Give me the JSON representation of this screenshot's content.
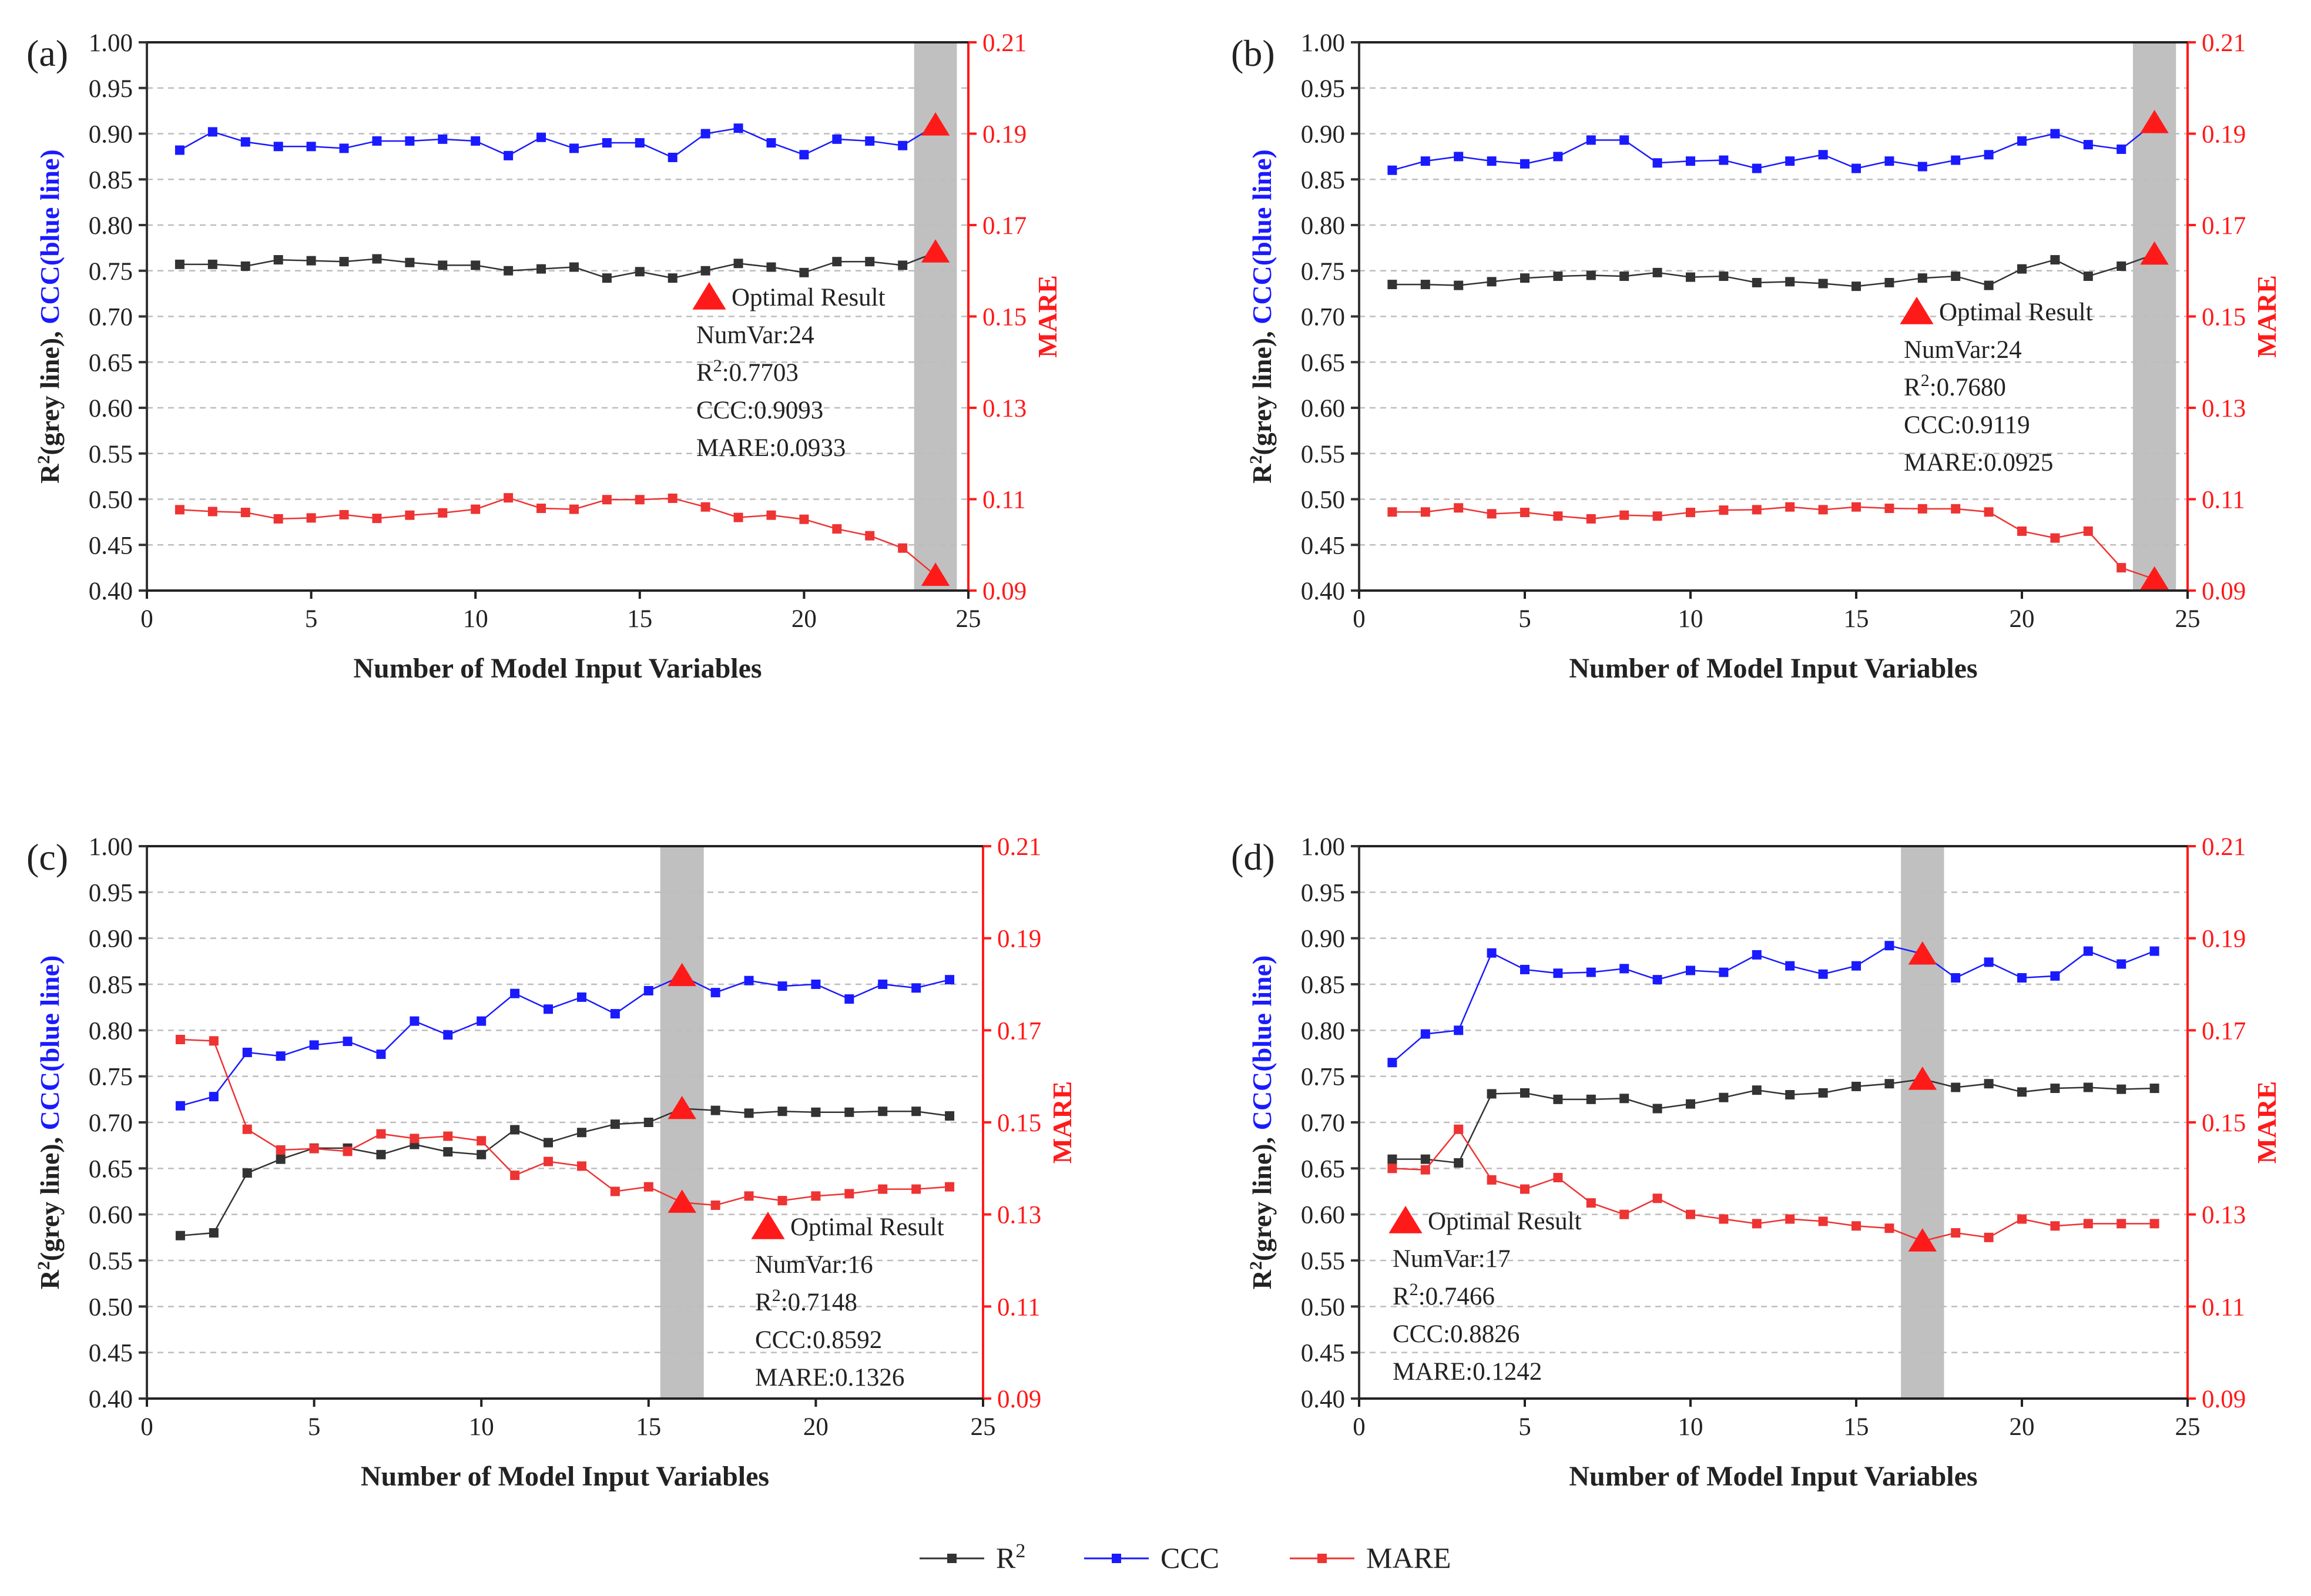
{
  "chart_data": [
    {
      "panel_label": "(a)",
      "type": "line",
      "xlabel": "Number of Model Input Variables",
      "ylabel_left_parts": [
        "R",
        "2",
        "(grey line), ",
        "CCC(blue line)"
      ],
      "ylabel_right": "MARE",
      "xlim": [
        0,
        25
      ],
      "ylim_left": [
        0.4,
        1.0
      ],
      "ylim_right": [
        0.09,
        0.21
      ],
      "x_ticks": [
        "0",
        "5",
        "10",
        "15",
        "20",
        "25"
      ],
      "y_left_ticks": [
        "0.40",
        "0.45",
        "0.50",
        "0.55",
        "0.60",
        "0.65",
        "0.70",
        "0.75",
        "0.80",
        "0.85",
        "0.90",
        "0.95",
        "1.00"
      ],
      "y_right_ticks": [
        "0.09",
        "0.11",
        "0.13",
        "0.15",
        "0.17",
        "0.19",
        "0.21"
      ],
      "x": [
        1,
        2,
        3,
        4,
        5,
        6,
        7,
        8,
        9,
        10,
        11,
        12,
        13,
        14,
        15,
        16,
        17,
        18,
        19,
        20,
        21,
        22,
        23,
        24
      ],
      "series": [
        {
          "name": "R2",
          "axis": "left",
          "color": "#333333",
          "values": [
            0.757,
            0.757,
            0.755,
            0.762,
            0.761,
            0.76,
            0.763,
            0.759,
            0.756,
            0.756,
            0.75,
            0.752,
            0.754,
            0.742,
            0.749,
            0.742,
            0.75,
            0.758,
            0.754,
            0.748,
            0.76,
            0.76,
            0.756,
            0.77
          ]
        },
        {
          "name": "CCC",
          "axis": "left",
          "color": "#1a1aff",
          "values": [
            0.882,
            0.902,
            0.891,
            0.886,
            0.886,
            0.884,
            0.892,
            0.892,
            0.894,
            0.892,
            0.876,
            0.896,
            0.884,
            0.89,
            0.89,
            0.874,
            0.9,
            0.906,
            0.89,
            0.877,
            0.894,
            0.892,
            0.887,
            0.909
          ]
        },
        {
          "name": "MARE",
          "axis": "right",
          "color": "#ee3333",
          "values": [
            0.1077,
            0.1073,
            0.1071,
            0.1057,
            0.1059,
            0.1066,
            0.1058,
            0.1065,
            0.107,
            0.1078,
            0.1103,
            0.108,
            0.1078,
            0.1099,
            0.1099,
            0.1102,
            0.1083,
            0.106,
            0.1065,
            0.1056,
            0.1035,
            0.102,
            0.0993,
            0.0933
          ]
        }
      ],
      "optimal": {
        "x": 24,
        "r2": 0.7703,
        "ccc": 0.9093,
        "mare": 0.0933
      },
      "highlight_x": 24,
      "annotation": {
        "title": "Optimal Result",
        "numvar": "NumVar:24",
        "r2_prefix": "R",
        "r2_sup": "2",
        "r2_value": ":0.7703",
        "ccc": "CCC:0.9093",
        "mare": "MARE:0.0933"
      }
    },
    {
      "panel_label": "(b)",
      "type": "line",
      "xlabel": "Number of Model Input Variables",
      "ylabel_left_parts": [
        "R",
        "2",
        "(grey line), ",
        "CCC(blue line)"
      ],
      "ylabel_right": "MARE",
      "xlim": [
        0,
        25
      ],
      "ylim_left": [
        0.4,
        1.0
      ],
      "ylim_right": [
        0.09,
        0.21
      ],
      "x_ticks": [
        "0",
        "5",
        "10",
        "15",
        "20",
        "25"
      ],
      "y_left_ticks": [
        "0.40",
        "0.45",
        "0.50",
        "0.55",
        "0.60",
        "0.65",
        "0.70",
        "0.75",
        "0.80",
        "0.85",
        "0.90",
        "0.95",
        "1.00"
      ],
      "y_right_ticks": [
        "0.09",
        "0.11",
        "0.13",
        "0.15",
        "0.17",
        "0.19",
        "0.21"
      ],
      "x": [
        1,
        2,
        3,
        4,
        5,
        6,
        7,
        8,
        9,
        10,
        11,
        12,
        13,
        14,
        15,
        16,
        17,
        18,
        19,
        20,
        21,
        22,
        23,
        24
      ],
      "series": [
        {
          "name": "R2",
          "axis": "left",
          "color": "#333333",
          "values": [
            0.735,
            0.735,
            0.734,
            0.738,
            0.742,
            0.744,
            0.745,
            0.744,
            0.748,
            0.743,
            0.744,
            0.737,
            0.738,
            0.736,
            0.733,
            0.737,
            0.742,
            0.744,
            0.734,
            0.752,
            0.762,
            0.744,
            0.755,
            0.768
          ]
        },
        {
          "name": "CCC",
          "axis": "left",
          "color": "#1a1aff",
          "values": [
            0.86,
            0.87,
            0.875,
            0.87,
            0.867,
            0.875,
            0.893,
            0.893,
            0.868,
            0.87,
            0.871,
            0.862,
            0.87,
            0.877,
            0.862,
            0.87,
            0.864,
            0.871,
            0.877,
            0.892,
            0.9,
            0.888,
            0.883,
            0.912
          ]
        },
        {
          "name": "MARE",
          "axis": "right",
          "color": "#ee3333",
          "values": [
            0.1072,
            0.1072,
            0.1081,
            0.1068,
            0.1071,
            0.1063,
            0.1057,
            0.1065,
            0.1063,
            0.1071,
            0.1076,
            0.1077,
            0.1083,
            0.1077,
            0.1083,
            0.108,
            0.1079,
            0.1079,
            0.1072,
            0.103,
            0.1015,
            0.103,
            0.095,
            0.0925
          ]
        }
      ],
      "optimal": {
        "x": 24,
        "r2": 0.768,
        "ccc": 0.9119,
        "mare": 0.0925
      },
      "highlight_x": 24,
      "annotation": {
        "title": "Optimal Result",
        "numvar": "NumVar:24",
        "r2_prefix": "R",
        "r2_sup": "2",
        "r2_value": ":0.7680",
        "ccc": "CCC:0.9119",
        "mare": "MARE:0.0925"
      }
    },
    {
      "panel_label": "(c)",
      "type": "line",
      "xlabel": "Number of Model Input Variables",
      "ylabel_left_parts": [
        "R",
        "2",
        "(grey line), ",
        "CCC(blue line)"
      ],
      "ylabel_right": "MARE",
      "xlim": [
        0,
        25
      ],
      "ylim_left": [
        0.4,
        1.0
      ],
      "ylim_right": [
        0.09,
        0.21
      ],
      "x_ticks": [
        "0",
        "5",
        "10",
        "15",
        "20",
        "25"
      ],
      "y_left_ticks": [
        "0.40",
        "0.45",
        "0.50",
        "0.55",
        "0.60",
        "0.65",
        "0.70",
        "0.75",
        "0.80",
        "0.85",
        "0.90",
        "0.95",
        "1.00"
      ],
      "y_right_ticks": [
        "0.09",
        "0.11",
        "0.13",
        "0.15",
        "0.17",
        "0.19",
        "0.21"
      ],
      "x": [
        1,
        2,
        3,
        4,
        5,
        6,
        7,
        8,
        9,
        10,
        11,
        12,
        13,
        14,
        15,
        16,
        17,
        18,
        19,
        20,
        21,
        22,
        23,
        24
      ],
      "series": [
        {
          "name": "R2",
          "axis": "left",
          "color": "#333333",
          "values": [
            0.577,
            0.58,
            0.645,
            0.66,
            0.672,
            0.672,
            0.665,
            0.676,
            0.668,
            0.665,
            0.692,
            0.678,
            0.689,
            0.698,
            0.7,
            0.715,
            0.713,
            0.71,
            0.712,
            0.711,
            0.711,
            0.712,
            0.712,
            0.707
          ]
        },
        {
          "name": "CCC",
          "axis": "left",
          "color": "#1a1aff",
          "values": [
            0.718,
            0.728,
            0.776,
            0.772,
            0.784,
            0.788,
            0.774,
            0.81,
            0.795,
            0.81,
            0.84,
            0.823,
            0.836,
            0.818,
            0.843,
            0.859,
            0.841,
            0.854,
            0.848,
            0.85,
            0.834,
            0.85,
            0.846,
            0.855
          ]
        },
        {
          "name": "MARE",
          "axis": "right",
          "color": "#ee3333",
          "values": [
            0.168,
            0.1677,
            0.1485,
            0.144,
            0.1443,
            0.1437,
            0.1475,
            0.1465,
            0.147,
            0.146,
            0.1385,
            0.1415,
            0.1405,
            0.135,
            0.136,
            0.1326,
            0.132,
            0.134,
            0.133,
            0.134,
            0.1345,
            0.1355,
            0.1355,
            0.136
          ]
        }
      ],
      "optimal": {
        "x": 16,
        "r2": 0.7148,
        "ccc": 0.8592,
        "mare": 0.1326
      },
      "highlight_x": 16,
      "annotation": {
        "title": "Optimal Result",
        "numvar": "NumVar:16",
        "r2_prefix": "R",
        "r2_sup": "2",
        "r2_value": ":0.7148",
        "ccc": "CCC:0.8592",
        "mare": "MARE:0.1326"
      }
    },
    {
      "panel_label": "(d)",
      "type": "line",
      "xlabel": "Number of Model Input Variables",
      "ylabel_left_parts": [
        "R",
        "2",
        "(grey line), ",
        "CCC(blue line)"
      ],
      "ylabel_right": "MARE",
      "xlim": [
        0,
        25
      ],
      "ylim_left": [
        0.4,
        1.0
      ],
      "ylim_right": [
        0.09,
        0.21
      ],
      "x_ticks": [
        "0",
        "5",
        "10",
        "15",
        "20",
        "25"
      ],
      "y_left_ticks": [
        "0.40",
        "0.45",
        "0.50",
        "0.55",
        "0.60",
        "0.65",
        "0.70",
        "0.75",
        "0.80",
        "0.85",
        "0.90",
        "0.95",
        "1.00"
      ],
      "y_right_ticks": [
        "0.09",
        "0.11",
        "0.13",
        "0.15",
        "0.17",
        "0.19",
        "0.21"
      ],
      "x": [
        1,
        2,
        3,
        4,
        5,
        6,
        7,
        8,
        9,
        10,
        11,
        12,
        13,
        14,
        15,
        16,
        17,
        18,
        19,
        20,
        21,
        22,
        23,
        24
      ],
      "series": [
        {
          "name": "R2",
          "axis": "left",
          "color": "#333333",
          "values": [
            0.66,
            0.66,
            0.656,
            0.731,
            0.732,
            0.725,
            0.725,
            0.726,
            0.715,
            0.72,
            0.727,
            0.735,
            0.73,
            0.732,
            0.739,
            0.742,
            0.747,
            0.738,
            0.742,
            0.733,
            0.737,
            0.738,
            0.736,
            0.737
          ]
        },
        {
          "name": "CCC",
          "axis": "left",
          "color": "#1a1aff",
          "values": [
            0.765,
            0.796,
            0.8,
            0.884,
            0.866,
            0.862,
            0.863,
            0.867,
            0.855,
            0.865,
            0.863,
            0.882,
            0.87,
            0.861,
            0.87,
            0.892,
            0.883,
            0.857,
            0.874,
            0.857,
            0.859,
            0.886,
            0.872,
            0.886
          ]
        },
        {
          "name": "MARE",
          "axis": "right",
          "color": "#ee3333",
          "values": [
            0.14,
            0.1397,
            0.1485,
            0.1375,
            0.1355,
            0.138,
            0.1325,
            0.13,
            0.1335,
            0.13,
            0.129,
            0.128,
            0.129,
            0.1285,
            0.1275,
            0.127,
            0.1242,
            0.126,
            0.125,
            0.129,
            0.1275,
            0.128,
            0.128,
            0.128
          ]
        }
      ],
      "optimal": {
        "x": 17,
        "r2": 0.7466,
        "ccc": 0.8826,
        "mare": 0.1242
      },
      "highlight_x": 17,
      "annotation": {
        "title": "Optimal Result",
        "numvar": "NumVar:17",
        "r2_prefix": "R",
        "r2_sup": "2",
        "r2_value": ":0.7466",
        "ccc": "CCC:0.8826",
        "mare": "MARE:0.1242"
      }
    }
  ],
  "legend": {
    "items": [
      {
        "label": "R",
        "sup": "2",
        "color": "#333333"
      },
      {
        "label": "CCC",
        "sup": "",
        "color": "#1a1aff"
      },
      {
        "label": "MARE",
        "sup": "",
        "color": "#ee3333"
      }
    ]
  },
  "colors": {
    "left_axis": "#333333",
    "right_axis": "#ff1a1a",
    "ccc_label": "#1a1aff",
    "highlight": "#c0c0c0",
    "grid": "#bdbdbd",
    "marker_optimal": "#ff1a1a"
  }
}
